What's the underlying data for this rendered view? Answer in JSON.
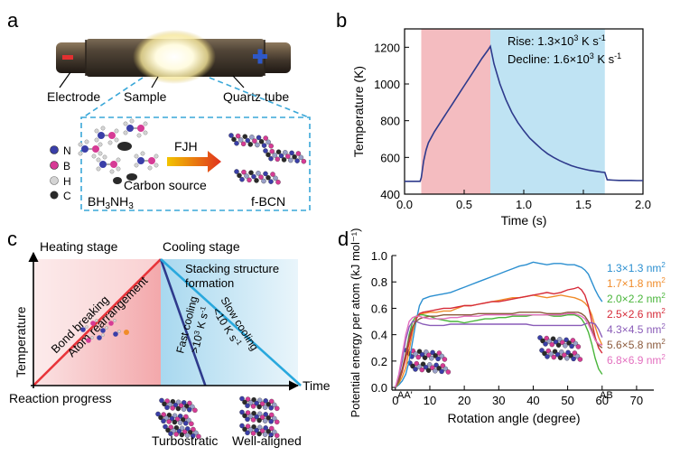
{
  "panels": {
    "a": {
      "label": "a",
      "callouts": {
        "electrode": "Electrode",
        "sample": "Sample",
        "quartz": "Quartz tube"
      },
      "legend": [
        {
          "symbol": "N",
          "color": "#3a3fa8"
        },
        {
          "symbol": "B",
          "color": "#d63b95"
        },
        {
          "symbol": "H",
          "color": "#c9c9c9"
        },
        {
          "symbol": "C",
          "color": "#2a2a2a"
        }
      ],
      "process": "FJH",
      "precursor_html_parts": {
        "formula_a": "BH",
        "sub_a": "3",
        "formula_b": "NH",
        "sub_b": "3"
      },
      "carbon_source": "Carbon source",
      "product": "f-BCN",
      "colors": {
        "dashed": "#39a7d8",
        "minus": "#e23030",
        "plus": "#2e58c8",
        "arrow_start": "#f2c400",
        "arrow_end": "#e0321e"
      }
    },
    "b": {
      "label": "b",
      "rise_text": "Rise: 1.3×10",
      "rise_sup": "3",
      "rise_unit": " K s",
      "rise_sup2": "-1",
      "decline_text": "Decline: 1.6×10",
      "decline_sup": "3",
      "decline_unit": " K s",
      "decline_sup2": "-1",
      "colors": {
        "heat_band": "#f4bcc0",
        "cool_band": "#bfe3f3",
        "line": "#2e3a8c"
      }
    },
    "c": {
      "label": "c",
      "heating_stage": "Heating stage",
      "cooling_stage": "Cooling stage",
      "stacking_line1": "Stacking structure",
      "stacking_line2": "formation",
      "bond_breaking": "Bond breaking",
      "atom_rearrangement": "Atom rearrangement",
      "fast_cooling": "Fast cooling",
      "fast_rate": ">10",
      "fast_rate_sup": "3",
      "fast_rate_unit": " K s",
      "fast_rate_sup2": "-1",
      "slow_cooling": "Slow cooling",
      "slow_rate": "<10 K s",
      "slow_rate_sup": "-1",
      "y_axis": "Temperature",
      "x_axis": "Time",
      "reaction_progress": "Reaction progress",
      "turbostratic": "Turbostratic",
      "well_aligned": "Well-aligned",
      "colors": {
        "heat": "#e8343a",
        "fast": "#2e3a8c",
        "slow": "#29a8dd"
      }
    },
    "d": {
      "label": "d",
      "aa": "AA'",
      "ab": "AB"
    }
  },
  "chart_data": [
    {
      "panel": "b",
      "type": "line",
      "title": "",
      "xlabel": "Time (s)",
      "ylabel": "Temperature (K)",
      "xlim": [
        0.0,
        2.0
      ],
      "ylim": [
        400,
        1300
      ],
      "xticks": [
        0.0,
        0.5,
        1.0,
        1.5,
        2.0
      ],
      "xtick_labels": [
        "0.0",
        "0.5",
        "1.0",
        "1.5",
        "2.0"
      ],
      "yticks": [
        400,
        600,
        800,
        1000,
        1200
      ],
      "ytick_labels": [
        "400",
        "600",
        "800",
        "1000",
        "1200"
      ],
      "heating_interval": [
        0.14,
        0.72
      ],
      "cooling_interval": [
        0.72,
        1.68
      ],
      "series": [
        {
          "name": "Temperature",
          "x": [
            0.0,
            0.13,
            0.14,
            0.16,
            0.18,
            0.2,
            0.25,
            0.3,
            0.35,
            0.4,
            0.45,
            0.5,
            0.55,
            0.6,
            0.65,
            0.7,
            0.72,
            0.75,
            0.8,
            0.85,
            0.9,
            0.95,
            1.0,
            1.05,
            1.1,
            1.15,
            1.2,
            1.25,
            1.3,
            1.35,
            1.4,
            1.45,
            1.5,
            1.55,
            1.6,
            1.65,
            1.68,
            1.7,
            1.75,
            1.8,
            1.85,
            1.9,
            1.95,
            2.0
          ],
          "y": [
            470,
            470,
            490,
            580,
            640,
            680,
            740,
            790,
            840,
            890,
            940,
            990,
            1040,
            1090,
            1140,
            1185,
            1205,
            1110,
            1000,
            915,
            845,
            790,
            745,
            705,
            675,
            645,
            620,
            600,
            583,
            568,
            555,
            545,
            537,
            530,
            525,
            520,
            518,
            478,
            476,
            475,
            475,
            475,
            474,
            474
          ]
        }
      ]
    },
    {
      "panel": "c",
      "type": "line",
      "title": "",
      "xlabel": "Time",
      "ylabel": "Temperature",
      "series": [
        {
          "name": "Heating",
          "x": [
            0,
            1
          ],
          "y": [
            0,
            1
          ]
        },
        {
          "name": "Fast cooling",
          "x": [
            1,
            1.35
          ],
          "y": [
            1,
            0
          ]
        },
        {
          "name": "Slow cooling",
          "x": [
            1,
            2.1
          ],
          "y": [
            1,
            0
          ]
        }
      ]
    },
    {
      "panel": "d",
      "type": "line",
      "title": "",
      "xlabel": "Rotation angle (degree)",
      "ylabel": "Potential energy per atom (kJ mol⁻¹)",
      "xlim": [
        -1,
        75
      ],
      "ylim": [
        -0.02,
        1.0
      ],
      "xticks": [
        0,
        10,
        20,
        30,
        40,
        50,
        60,
        70
      ],
      "xtick_labels": [
        "0",
        "10",
        "20",
        "30",
        "40",
        "50",
        "60",
        "70"
      ],
      "yticks": [
        0.0,
        0.2,
        0.4,
        0.6,
        0.8,
        1.0
      ],
      "ytick_labels": [
        "0.0",
        "0.2",
        "0.4",
        "0.6",
        "0.8",
        "1.0"
      ],
      "x": [
        0,
        1,
        2,
        3,
        4,
        5,
        6,
        7,
        8,
        10,
        12,
        14,
        16,
        18,
        20,
        22,
        24,
        26,
        28,
        30,
        32,
        34,
        36,
        38,
        40,
        42,
        44,
        46,
        48,
        50,
        52,
        53,
        54,
        55,
        56,
        57,
        58,
        59,
        60
      ],
      "series": [
        {
          "name": "1.3×1.3",
          "sup": "2",
          "color": "#2b8fd0",
          "values": [
            0.0,
            0.02,
            0.05,
            0.1,
            0.2,
            0.35,
            0.5,
            0.62,
            0.67,
            0.69,
            0.7,
            0.71,
            0.72,
            0.74,
            0.76,
            0.78,
            0.8,
            0.82,
            0.84,
            0.86,
            0.88,
            0.9,
            0.92,
            0.93,
            0.95,
            0.94,
            0.93,
            0.94,
            0.94,
            0.93,
            0.93,
            0.92,
            0.91,
            0.89,
            0.86,
            0.8,
            0.74,
            0.69,
            0.65
          ]
        },
        {
          "name": "1.7×1.8",
          "sup": "2",
          "color": "#f08c2a",
          "values": [
            0.0,
            0.03,
            0.08,
            0.15,
            0.28,
            0.42,
            0.52,
            0.55,
            0.56,
            0.57,
            0.57,
            0.58,
            0.58,
            0.6,
            0.62,
            0.62,
            0.63,
            0.64,
            0.65,
            0.66,
            0.67,
            0.68,
            0.68,
            0.69,
            0.7,
            0.69,
            0.68,
            0.69,
            0.7,
            0.69,
            0.68,
            0.67,
            0.66,
            0.64,
            0.61,
            0.55,
            0.46,
            0.38,
            0.32
          ]
        },
        {
          "name": "2.0×2.2",
          "sup": "2",
          "color": "#49b53a",
          "values": [
            0.0,
            0.04,
            0.12,
            0.25,
            0.4,
            0.5,
            0.54,
            0.55,
            0.55,
            0.54,
            0.52,
            0.51,
            0.5,
            0.5,
            0.49,
            0.5,
            0.51,
            0.52,
            0.52,
            0.53,
            0.53,
            0.54,
            0.54,
            0.54,
            0.55,
            0.55,
            0.55,
            0.54,
            0.54,
            0.55,
            0.55,
            0.54,
            0.52,
            0.48,
            0.42,
            0.33,
            0.22,
            0.14,
            0.1
          ]
        },
        {
          "name": "2.5×2.6",
          "sup": "2",
          "color": "#d62a38",
          "values": [
            0.0,
            0.05,
            0.12,
            0.22,
            0.34,
            0.45,
            0.52,
            0.56,
            0.57,
            0.58,
            0.59,
            0.6,
            0.6,
            0.61,
            0.62,
            0.62,
            0.63,
            0.64,
            0.65,
            0.65,
            0.66,
            0.67,
            0.68,
            0.69,
            0.7,
            0.71,
            0.72,
            0.71,
            0.72,
            0.74,
            0.75,
            0.76,
            0.74,
            0.7,
            0.62,
            0.5,
            0.38,
            0.3,
            0.26
          ]
        },
        {
          "name": "4.3×4.5",
          "sup": "2",
          "color": "#8a5cb8",
          "values": [
            0.0,
            0.08,
            0.2,
            0.36,
            0.46,
            0.5,
            0.5,
            0.49,
            0.48,
            0.47,
            0.47,
            0.47,
            0.48,
            0.48,
            0.48,
            0.48,
            0.48,
            0.48,
            0.48,
            0.48,
            0.48,
            0.48,
            0.48,
            0.48,
            0.47,
            0.47,
            0.47,
            0.47,
            0.47,
            0.47,
            0.47,
            0.47,
            0.47,
            0.48,
            0.49,
            0.49,
            0.48,
            0.44,
            0.38
          ]
        },
        {
          "name": "5.6×5.8",
          "sup": "2",
          "color": "#8b5a3c",
          "values": [
            0.0,
            0.06,
            0.14,
            0.26,
            0.38,
            0.46,
            0.5,
            0.52,
            0.53,
            0.54,
            0.54,
            0.55,
            0.55,
            0.55,
            0.55,
            0.55,
            0.56,
            0.56,
            0.56,
            0.56,
            0.56,
            0.56,
            0.57,
            0.57,
            0.57,
            0.57,
            0.56,
            0.56,
            0.56,
            0.57,
            0.57,
            0.57,
            0.56,
            0.54,
            0.5,
            0.44,
            0.36,
            0.32,
            0.3
          ]
        },
        {
          "name": "6.8×6.9",
          "sup": "2",
          "color": "#e36fbf",
          "values": [
            0.0,
            0.1,
            0.25,
            0.4,
            0.5,
            0.53,
            0.54,
            0.54,
            0.53,
            0.52,
            0.52,
            0.52,
            0.53,
            0.53,
            0.54,
            0.54,
            0.54,
            0.55,
            0.55,
            0.55,
            0.55,
            0.55,
            0.55,
            0.55,
            0.55,
            0.55,
            0.55,
            0.55,
            0.55,
            0.56,
            0.56,
            0.55,
            0.54,
            0.52,
            0.48,
            0.42,
            0.36,
            0.33,
            0.32
          ]
        }
      ],
      "legend_unit": " nm"
    }
  ]
}
